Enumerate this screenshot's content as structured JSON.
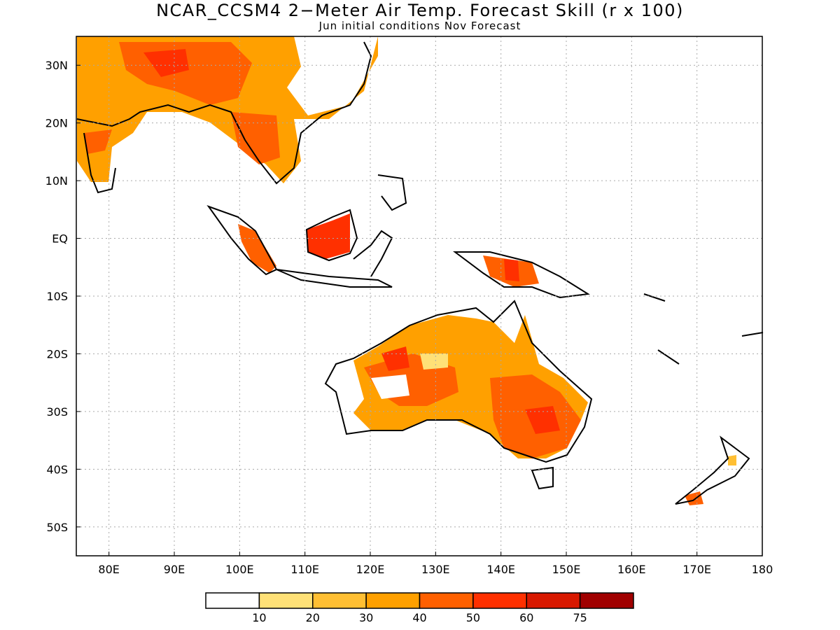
{
  "header": {
    "title": "NCAR_CCSM4 2−Meter Air Temp. Forecast Skill (r x 100)",
    "subtitle": "Jun initial conditions  Nov Forecast"
  },
  "map": {
    "lon_range": [
      75,
      180
    ],
    "lat_range": [
      -55,
      35
    ],
    "x_ticks": [
      "80E",
      "90E",
      "100E",
      "110E",
      "120E",
      "130E",
      "140E",
      "150E",
      "160E",
      "170E",
      "180"
    ],
    "y_ticks": [
      "30N",
      "20N",
      "10N",
      "EQ",
      "10S",
      "20S",
      "30S",
      "40S",
      "50S"
    ],
    "grid": "dotted"
  },
  "colorbar": {
    "colors": [
      "#ffffff",
      "#ffe177",
      "#ffbf33",
      "#ffa000",
      "#ff6000",
      "#ff3000",
      "#d81800",
      "#a00000"
    ],
    "labels": [
      "10",
      "20",
      "30",
      "40",
      "50",
      "60",
      "75"
    ]
  }
}
